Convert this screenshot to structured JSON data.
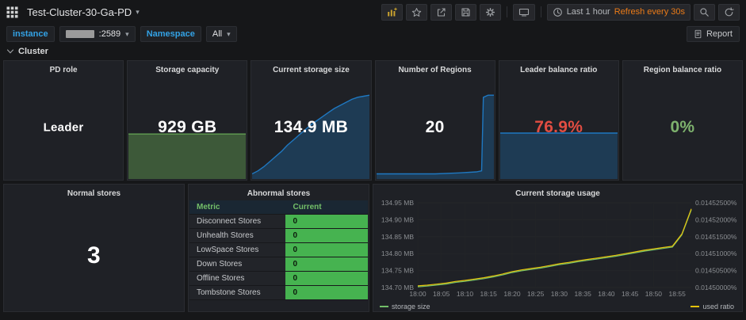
{
  "colors": {
    "accent_orange": "#eb7b18",
    "value_red": "#e24d42",
    "value_green": "#7eb26d",
    "table_green": "#46b350",
    "table_value_text": "#0b1b0b",
    "series_storage": "#73bf69",
    "series_ratio": "#e5c20c"
  },
  "glyphs": {
    "caret": "▾"
  },
  "navbar": {
    "title": "Test-Cluster-30-Ga-PD",
    "time_range": "Last 1 hour",
    "refresh": "Refresh every 30s",
    "icons": [
      "grafana-menu",
      "add-panel",
      "star",
      "share",
      "save",
      "settings",
      "tv",
      "clock",
      "search",
      "refresh"
    ]
  },
  "filters": {
    "instance_label": "instance",
    "instance_value": ":2589",
    "namespace_label": "Namespace",
    "namespace_value": "All",
    "report_label": "Report"
  },
  "row": {
    "title": "Cluster"
  },
  "panels": {
    "pd_role": {
      "title": "PD role",
      "value": "Leader"
    },
    "storage_capacity": {
      "title": "Storage capacity",
      "value": "929 GB",
      "sparkline": {
        "points": [
          [
            0,
            0.44
          ],
          [
            1,
            0.44
          ]
        ],
        "line": "#629e51",
        "fill": "rgba(98,158,81,0.45)"
      }
    },
    "current_storage_size": {
      "title": "Current storage size",
      "value": "134.9 MB",
      "sparkline": {
        "points": [
          [
            0,
            0.05
          ],
          [
            0.05,
            0.08
          ],
          [
            0.1,
            0.12
          ],
          [
            0.15,
            0.17
          ],
          [
            0.2,
            0.22
          ],
          [
            0.25,
            0.27
          ],
          [
            0.3,
            0.33
          ],
          [
            0.35,
            0.38
          ],
          [
            0.4,
            0.43
          ],
          [
            0.45,
            0.48
          ],
          [
            0.5,
            0.53
          ],
          [
            0.55,
            0.57
          ],
          [
            0.6,
            0.61
          ],
          [
            0.65,
            0.65
          ],
          [
            0.7,
            0.69
          ],
          [
            0.75,
            0.72
          ],
          [
            0.8,
            0.75
          ],
          [
            0.85,
            0.78
          ],
          [
            0.9,
            0.8
          ],
          [
            0.95,
            0.81
          ],
          [
            1,
            0.82
          ]
        ],
        "line": "#1f78c1",
        "fill": "rgba(31,120,193,0.30)"
      }
    },
    "number_of_regions": {
      "title": "Number of Regions",
      "value": "20",
      "sparkline": {
        "points": [
          [
            0,
            0.05
          ],
          [
            0.5,
            0.05
          ],
          [
            0.7,
            0.06
          ],
          [
            0.85,
            0.07
          ],
          [
            0.895,
            0.08
          ],
          [
            0.91,
            0.8
          ],
          [
            0.95,
            0.82
          ],
          [
            1,
            0.82
          ]
        ],
        "line": "#1f78c1",
        "fill": "rgba(31,120,193,0.30)"
      }
    },
    "leader_balance_ratio": {
      "title": "Leader balance ratio",
      "value": "76.9%",
      "value_color": "#e24d42",
      "sparkline": {
        "points": [
          [
            0,
            0.45
          ],
          [
            1,
            0.45
          ]
        ],
        "line": "#1f78c1",
        "fill": "rgba(31,120,193,0.30)"
      }
    },
    "region_balance_ratio": {
      "title": "Region balance ratio",
      "value": "0%",
      "value_color": "#7eb26d"
    },
    "normal_stores": {
      "title": "Normal stores",
      "value": "3"
    },
    "abnormal_stores": {
      "title": "Abnormal stores",
      "columns": [
        "Metric",
        "Current"
      ],
      "rows": [
        [
          "Disconnect Stores",
          "0"
        ],
        [
          "Unhealth Stores",
          "0"
        ],
        [
          "LowSpace Stores",
          "0"
        ],
        [
          "Down Stores",
          "0"
        ],
        [
          "Offline Stores",
          "0"
        ],
        [
          "Tombstone Stores",
          "0"
        ]
      ]
    },
    "current_storage_usage": {
      "title": "Current storage usage",
      "chart_data": {
        "type": "line",
        "title": "Current storage usage",
        "x_ticks": [
          "18:00",
          "18:05",
          "18:10",
          "18:15",
          "18:20",
          "18:25",
          "18:30",
          "18:35",
          "18:40",
          "18:45",
          "18:50",
          "18:55"
        ],
        "x_tick_minutes": [
          0,
          5,
          10,
          15,
          20,
          25,
          30,
          35,
          40,
          45,
          50,
          55
        ],
        "x_max_minutes": 58,
        "x_minutes": [
          0,
          2,
          4,
          6,
          8,
          10,
          12,
          14,
          16,
          18,
          20,
          22,
          24,
          26,
          28,
          30,
          32,
          34,
          36,
          38,
          40,
          42,
          44,
          46,
          48,
          50,
          52,
          54,
          56,
          58
        ],
        "left_axis": {
          "labels": [
            "134.95 MB",
            "134.90 MB",
            "134.85 MB",
            "134.80 MB",
            "134.75 MB",
            "134.70 MB"
          ],
          "range": [
            134.7,
            134.95
          ]
        },
        "right_axis": {
          "labels": [
            "0.01452500%",
            "0.01452000%",
            "0.01451500%",
            "0.01451000%",
            "0.01450500%",
            "0.01450000%"
          ],
          "range": [
            0.0145,
            0.014525
          ]
        },
        "series": [
          {
            "name": "storage size",
            "color": "#73bf69",
            "axis": "left",
            "values": [
              134.705,
              134.707,
              134.71,
              134.713,
              134.718,
              134.721,
              134.725,
              134.729,
              134.734,
              134.74,
              134.747,
              134.752,
              134.756,
              134.76,
              134.765,
              134.77,
              134.774,
              134.779,
              134.783,
              134.787,
              134.791,
              134.795,
              134.8,
              134.805,
              134.81,
              134.814,
              134.818,
              134.822,
              134.858,
              134.932
            ]
          },
          {
            "name": "used ratio",
            "color": "#e5c20c",
            "axis": "right",
            "values": [
              0.0145005,
              0.0145007,
              0.014501,
              0.0145013,
              0.0145018,
              0.0145021,
              0.0145025,
              0.0145029,
              0.0145034,
              0.014504,
              0.0145047,
              0.0145052,
              0.0145056,
              0.014506,
              0.0145065,
              0.014507,
              0.0145074,
              0.0145079,
              0.0145083,
              0.0145087,
              0.0145091,
              0.0145095,
              0.01451,
              0.0145105,
              0.014511,
              0.0145114,
              0.0145118,
              0.0145122,
              0.0145158,
              0.0145232
            ]
          }
        ],
        "legend_position": "bottom"
      }
    }
  }
}
